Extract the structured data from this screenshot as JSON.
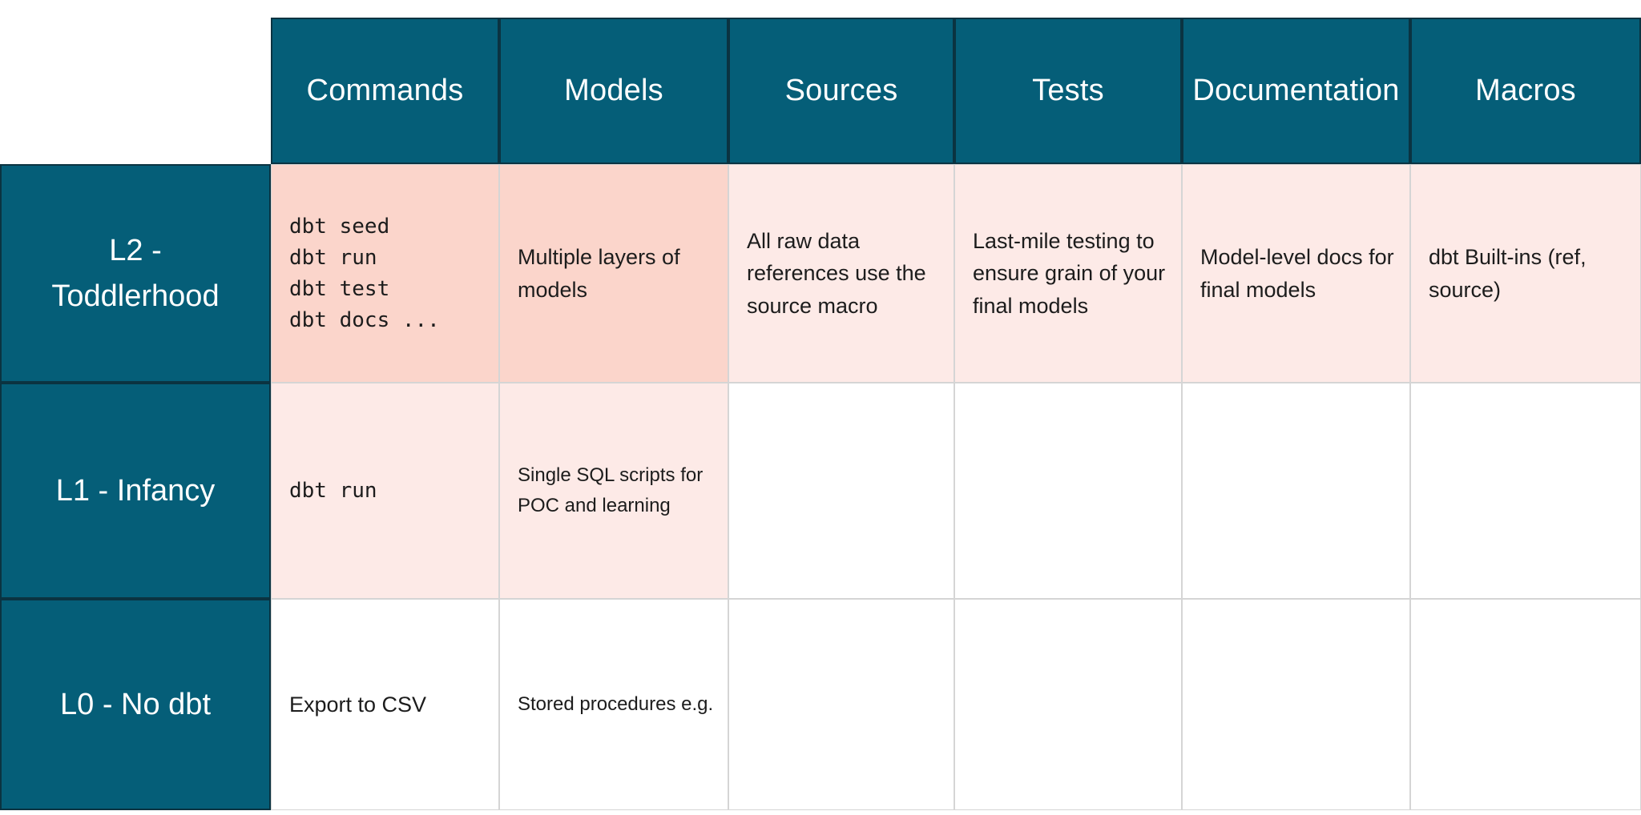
{
  "theme": {
    "header_bg": "#055E78",
    "header_text": "#FFFFFF",
    "strong_bg": "#FBD5CB",
    "light_bg": "#FDEAE7",
    "empty_bg": "#FFFFFF",
    "dark_border": "#0B3341",
    "light_border": "#D5D5D5",
    "body_text": "#1C1C1C",
    "canvas_bg": "#FFFFFF"
  },
  "table": {
    "columns": [
      "Commands",
      "Models",
      "Sources",
      "Tests",
      "Documentation",
      "Macros"
    ],
    "rows": [
      {
        "label": "L2 -\nToddlerhood",
        "cells": [
          {
            "text": "dbt seed\ndbt run\ndbt test\ndbt docs ..."
          },
          {
            "text": "Multiple layers of models"
          },
          {
            "text": "All raw data references use the source macro"
          },
          {
            "text": "Last-mile testing to ensure grain of your final models"
          },
          {
            "text": "Model-level docs for final models"
          },
          {
            "text": "dbt Built-ins (ref, source)"
          }
        ]
      },
      {
        "label": "L1 - Infancy",
        "cells": [
          {
            "text": "dbt run"
          },
          {
            "text": "Single SQL scripts for POC and learning"
          },
          {
            "text": ""
          },
          {
            "text": ""
          },
          {
            "text": ""
          },
          {
            "text": ""
          }
        ]
      },
      {
        "label": "L0 - No dbt",
        "cells": [
          {
            "text": "Export to CSV"
          },
          {
            "text": "Stored procedures e.g."
          },
          {
            "text": ""
          },
          {
            "text": ""
          },
          {
            "text": ""
          },
          {
            "text": ""
          }
        ]
      }
    ]
  },
  "chart_data": {
    "type": "table",
    "columns": [
      "",
      "Commands",
      "Models",
      "Sources",
      "Tests",
      "Documentation",
      "Macros"
    ],
    "rows": [
      [
        "L2 - Toddlerhood",
        "dbt seed / dbt run / dbt test / dbt docs ...",
        "Multiple layers of models",
        "All raw data references use the source macro",
        "Last-mile testing to ensure grain of your final models",
        "Model-level docs for final models",
        "dbt Built-ins (ref, source)"
      ],
      [
        "L1 - Infancy",
        "dbt run",
        "Single SQL scripts for POC and learning",
        "",
        "",
        "",
        ""
      ],
      [
        "L0 - No dbt",
        "Export to CSV",
        "Stored procedures e.g.",
        "",
        "",
        "",
        ""
      ]
    ],
    "title": "",
    "legend": "cell shading indicates maturity heat: strong=#FBD5CB, light=#FDEAE7, none=#FFFFFF"
  }
}
